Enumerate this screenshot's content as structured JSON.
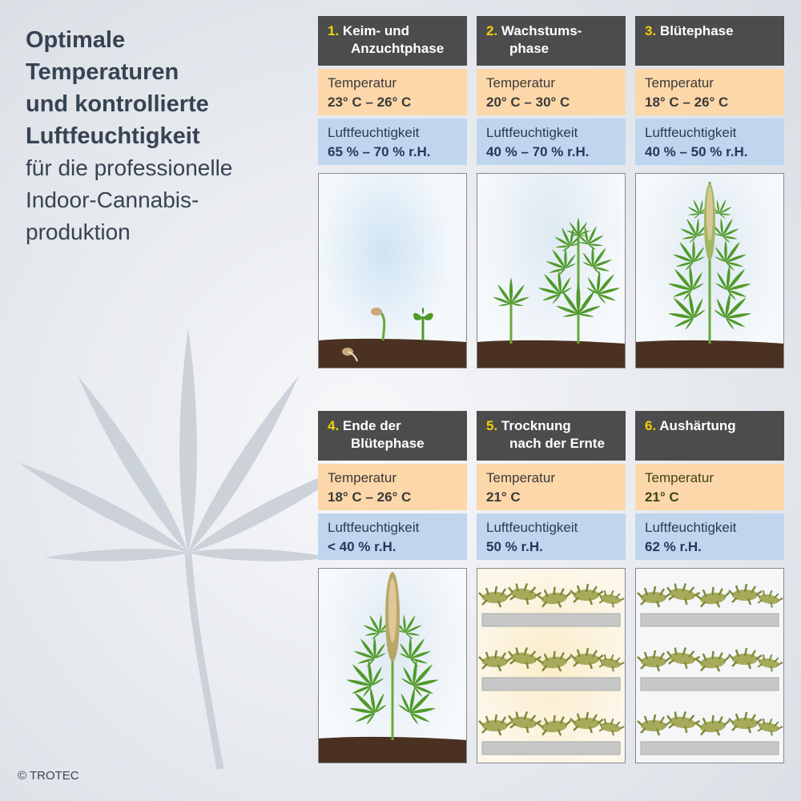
{
  "title": {
    "line1": "Optimale",
    "line2": "Temperaturen",
    "line3": "und kontrollierte",
    "line4": "Luftfeuchtigkeit",
    "line5": "für die professionelle",
    "line6": "Indoor-Cannabis-",
    "line7": "produktion"
  },
  "copyright": "© TROTEC",
  "labels": {
    "temperature": "Temperatur",
    "humidity": "Luftfeuchtigkeit"
  },
  "phases": [
    {
      "number": "1.",
      "name_line1": "Keim- und",
      "name_line2": "Anzuchtphase",
      "temperature": "23° C – 26° C",
      "humidity": "65 % – 70 % r.H."
    },
    {
      "number": "2.",
      "name_line1": "Wachstums-",
      "name_line2": "phase",
      "temperature": "20° C – 30° C",
      "humidity": "40 % – 70 % r.H."
    },
    {
      "number": "3.",
      "name_line1": "Blütephase",
      "name_line2": "",
      "temperature": "18° C – 26° C",
      "humidity": "40 % – 50 % r.H."
    },
    {
      "number": "4.",
      "name_line1": "Ende der",
      "name_line2": "Blütephase",
      "temperature": "18° C – 26° C",
      "humidity": "< 40 % r.H."
    },
    {
      "number": "5.",
      "name_line1": "Trocknung",
      "name_line2": "nach der Ernte",
      "temperature": "21° C",
      "humidity": "50 % r.H."
    },
    {
      "number": "6.",
      "name_line1": "Aushärtung",
      "name_line2": "",
      "temperature": "21° C",
      "humidity": "62 % r.H."
    }
  ],
  "colors": {
    "header_bg": "#4b4c4b",
    "number_yellow": "#f2d20b",
    "temperature_bg": "#fcd7a9",
    "humidity_bg": "#bfd6ee",
    "soil": "#4a3122",
    "leaf_green": "#4f9a2a",
    "title_text": "#374353"
  },
  "icons": [
    "cannabis-leaf-watermark-icon",
    "seedling-icon",
    "young-plant-icon",
    "flowering-plant-icon",
    "late-flowering-plant-icon",
    "drying-rack-icon",
    "curing-rack-icon"
  ]
}
